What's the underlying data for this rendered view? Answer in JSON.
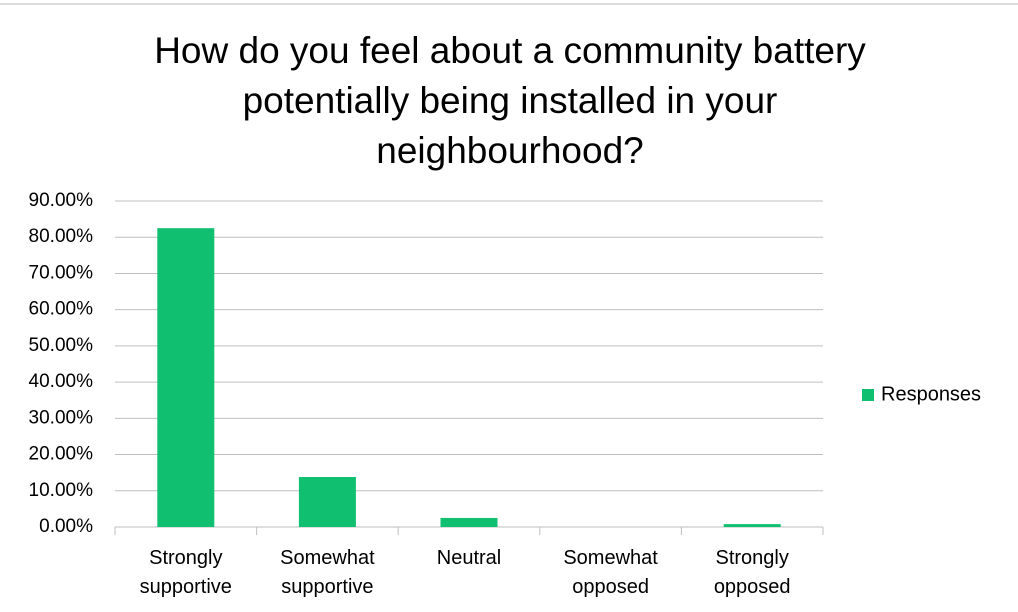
{
  "chart_data": {
    "type": "bar",
    "title": "How do you feel about a community battery potentially being installed in your neighbourhood?",
    "categories": [
      "Strongly supportive",
      "Somewhat supportive",
      "Neutral",
      "Somewhat opposed",
      "Strongly opposed"
    ],
    "series": [
      {
        "name": "Responses",
        "color": "#10c070",
        "values": [
          82.5,
          13.8,
          2.5,
          0,
          0.8
        ]
      }
    ],
    "ylim": [
      0,
      90
    ],
    "yticks": [
      {
        "value": 0,
        "label": "0.00%"
      },
      {
        "value": 10,
        "label": "10.00%"
      },
      {
        "value": 20,
        "label": "20.00%"
      },
      {
        "value": 30,
        "label": "30.00%"
      },
      {
        "value": 40,
        "label": "40.00%"
      },
      {
        "value": 50,
        "label": "50.00%"
      },
      {
        "value": 60,
        "label": "60.00%"
      },
      {
        "value": 70,
        "label": "70.00%"
      },
      {
        "value": 80,
        "label": "80.00%"
      },
      {
        "value": 90,
        "label": "90.00%"
      }
    ],
    "grid": true,
    "legend": "right"
  }
}
